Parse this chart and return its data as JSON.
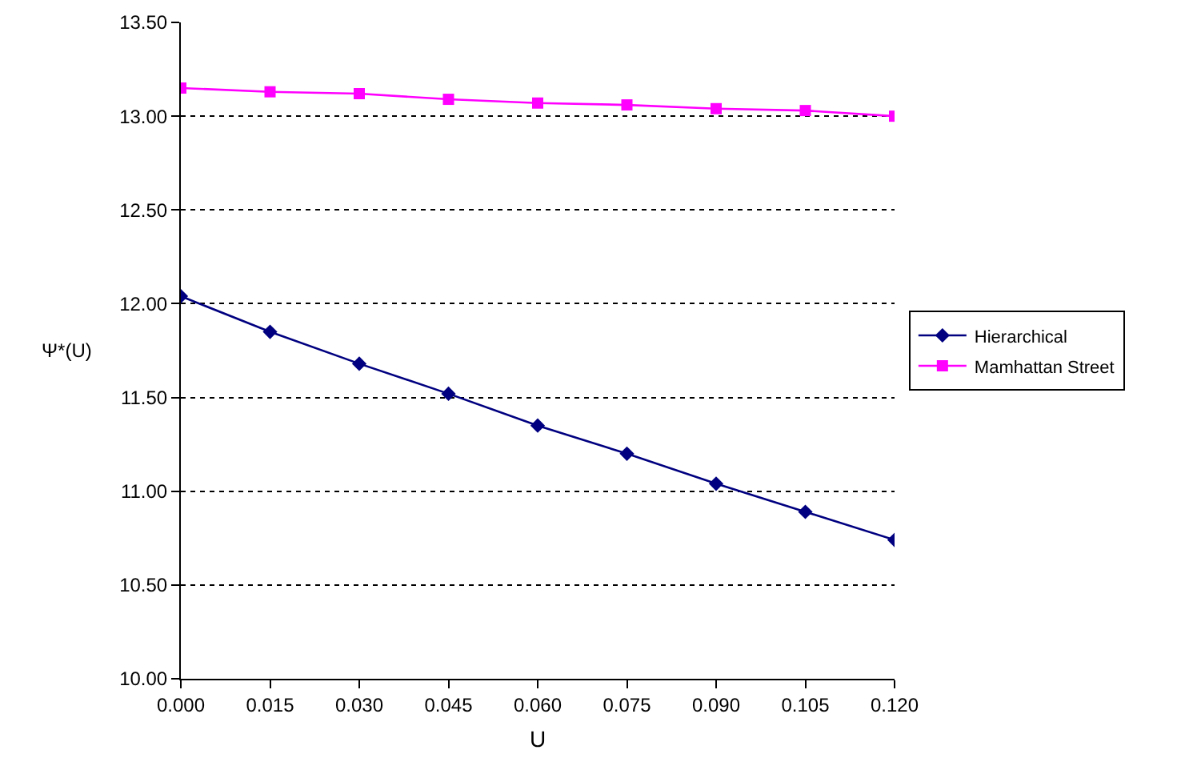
{
  "chart_data": {
    "type": "line",
    "xlabel": "U",
    "ylabel": "Ψ*(U)",
    "categories": [
      "0.000",
      "0.015",
      "0.030",
      "0.045",
      "0.060",
      "0.075",
      "0.090",
      "0.105",
      "0.120"
    ],
    "series": [
      {
        "name": "Hierarchical",
        "color": "#000080",
        "marker": "diamond",
        "values": [
          12.04,
          11.85,
          11.68,
          11.52,
          11.35,
          11.2,
          11.04,
          10.89,
          10.74
        ]
      },
      {
        "name": "Mamhattan Street",
        "color": "#ff00ff",
        "marker": "square",
        "values": [
          13.15,
          13.13,
          13.12,
          13.09,
          13.07,
          13.06,
          13.04,
          13.03,
          13.0
        ]
      }
    ],
    "ylim": [
      10,
      13.5
    ],
    "yticks": [
      {
        "value": 10,
        "label": "10.00"
      },
      {
        "value": 10.5,
        "label": "10.50"
      },
      {
        "value": 11,
        "label": "11.00"
      },
      {
        "value": 11.5,
        "label": "11.50"
      },
      {
        "value": 12,
        "label": "12.00"
      },
      {
        "value": 12.5,
        "label": "12.50"
      },
      {
        "value": 13,
        "label": "13.00"
      },
      {
        "value": 13.5,
        "label": "13.50"
      }
    ],
    "grid": "y",
    "legend": "right",
    "line_style": "solid"
  }
}
